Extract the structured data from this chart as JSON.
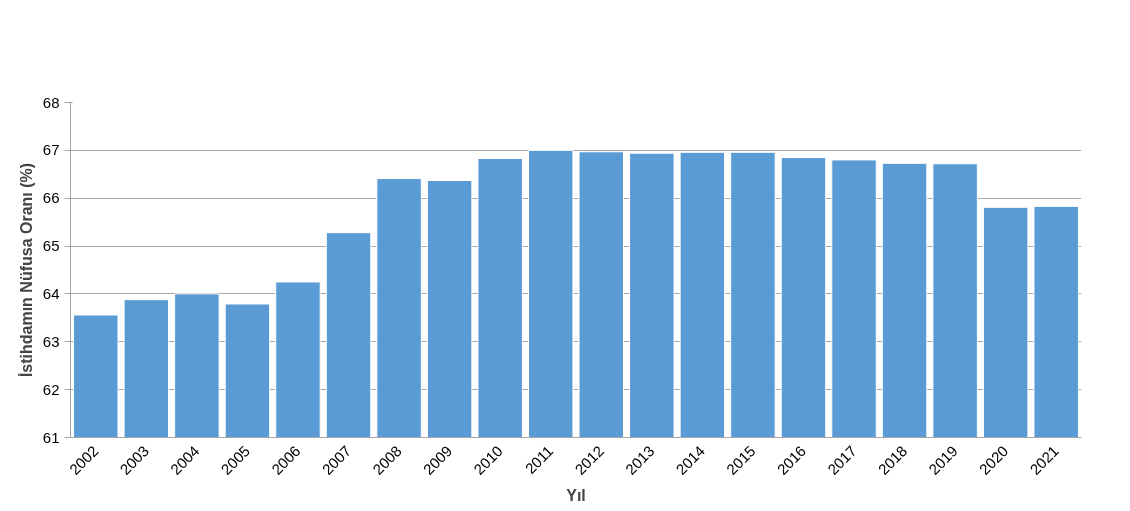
{
  "chart_data": {
    "type": "bar",
    "xlabel": "Yıl",
    "ylabel": "İstihdamın Nüfusa Oranı (%)",
    "categories": [
      "2002",
      "2003",
      "2004",
      "2005",
      "2006",
      "2007",
      "2008",
      "2009",
      "2010",
      "2011",
      "2012",
      "2013",
      "2014",
      "2015",
      "2016",
      "2017",
      "2018",
      "2019",
      "2020",
      "2021"
    ],
    "values": [
      63.56,
      63.88,
      64.0,
      63.79,
      64.25,
      65.28,
      66.41,
      66.37,
      66.83,
      67.0,
      66.97,
      66.94,
      66.96,
      66.96,
      66.85,
      66.8,
      66.73,
      66.72,
      65.81,
      65.83
    ],
    "color": "#5b9bd5",
    "ylim": [
      61,
      68
    ],
    "yticks": [
      61,
      62,
      63,
      64,
      65,
      66,
      67,
      68
    ],
    "grid": "y"
  }
}
